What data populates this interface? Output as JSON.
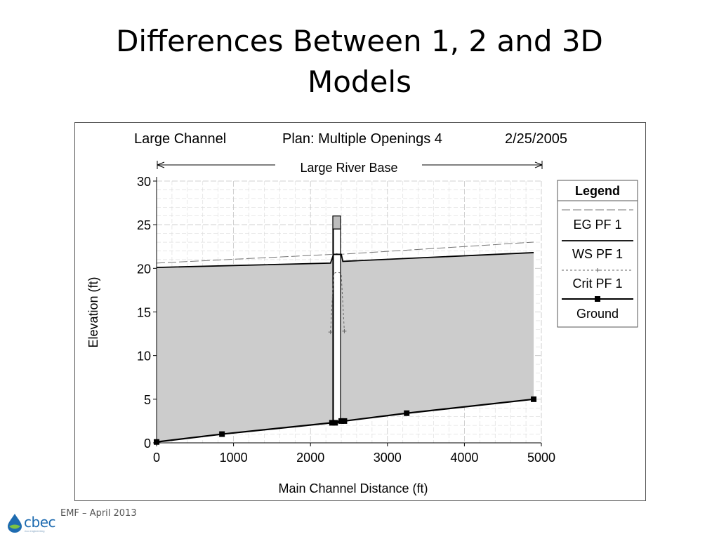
{
  "slide": {
    "title_line1": "Differences Between 1, 2 and 3D",
    "title_line2": "Models",
    "footer": "EMF – April 2013",
    "logo_text": "cbec",
    "logo_tagline": "eco engineering"
  },
  "colors": {
    "ground_fill": "#cccccc",
    "grid": "#d9d9d9",
    "line": "#000000",
    "logo_blue": "#1e6bb0",
    "logo_green": "#7cc242"
  },
  "chart_data": {
    "type": "area",
    "header": {
      "project": "Large Channel",
      "plan": "Plan: Multiple Openings 4",
      "date": "2/25/2005",
      "reach": "Large River Base"
    },
    "xlabel": "Main Channel Distance (ft)",
    "ylabel": "Elevation (ft)",
    "xlim": [
      0,
      5000
    ],
    "ylim": [
      0,
      30
    ],
    "xticks": [
      0,
      1000,
      2000,
      3000,
      4000,
      5000
    ],
    "yticks": [
      0,
      5,
      10,
      15,
      20,
      25,
      30
    ],
    "grid": true,
    "legend": {
      "title": "Legend",
      "placement": "right",
      "entries": [
        {
          "label": "EG  PF 1",
          "style": "long-dash"
        },
        {
          "label": "WS  PF 1",
          "style": "solid"
        },
        {
          "label": "Crit  PF 1",
          "style": "dashed-plus"
        },
        {
          "label": "Ground",
          "style": "solid-square"
        }
      ]
    },
    "series": [
      {
        "name": "EG  PF 1",
        "x": [
          0,
          2280,
          2330,
          2380,
          4900
        ],
        "y": [
          20.6,
          21.6,
          21.7,
          21.6,
          23.0
        ]
      },
      {
        "name": "WS  PF 1",
        "x": [
          0,
          2260,
          2300,
          2320,
          2380,
          2400,
          2420,
          4900
        ],
        "y": [
          20.1,
          20.6,
          21.6,
          21.6,
          21.6,
          21.6,
          20.8,
          21.8
        ]
      },
      {
        "name": "Crit  PF 1",
        "x": [
          2260,
          2300,
          2320,
          2380,
          2400,
          2440
        ],
        "y": [
          12.7,
          19.2,
          19.5,
          19.5,
          19.2,
          12.8
        ]
      },
      {
        "name": "Ground",
        "x": [
          0,
          850,
          2280,
          2320,
          2400,
          2440,
          3250,
          4900
        ],
        "y": [
          0.1,
          1.0,
          2.3,
          2.3,
          2.5,
          2.5,
          3.4,
          5.0
        ],
        "markers": true
      }
    ],
    "bridge": {
      "x_left": 2290,
      "x_right": 2390,
      "deck_bottom": 24.5,
      "deck_top": 26.0
    }
  }
}
